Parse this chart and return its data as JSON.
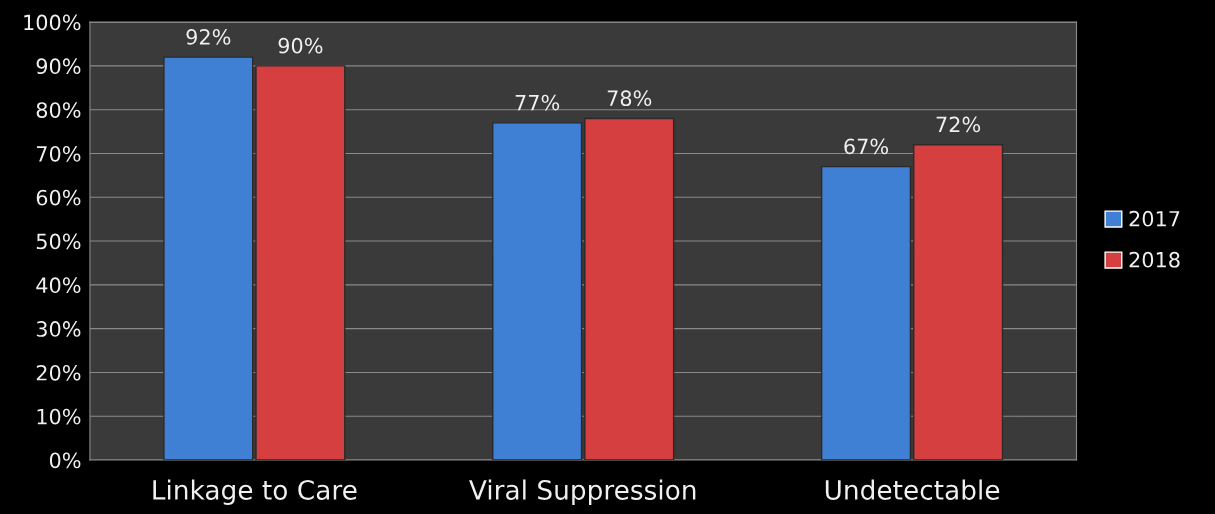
{
  "chart_data": {
    "type": "bar",
    "categories": [
      "Linkage to Care",
      "Viral Suppression",
      "Undetectable"
    ],
    "series": [
      {
        "name": "2017",
        "color": "#3f7fd4",
        "values": [
          92,
          77,
          67
        ],
        "value_labels": [
          "92%",
          "77%",
          "67%"
        ]
      },
      {
        "name": "2018",
        "color": "#d63f3f",
        "values": [
          90,
          78,
          72
        ],
        "value_labels": [
          "90%",
          "78%",
          "72%"
        ]
      }
    ],
    "ylim": [
      0,
      100
    ],
    "yticks": [
      {
        "value": 0,
        "label": "0%"
      },
      {
        "value": 10,
        "label": "10%"
      },
      {
        "value": 20,
        "label": "20%"
      },
      {
        "value": 30,
        "label": "30%"
      },
      {
        "value": 40,
        "label": "40%"
      },
      {
        "value": 50,
        "label": "50%"
      },
      {
        "value": 60,
        "label": "60%"
      },
      {
        "value": 70,
        "label": "70%"
      },
      {
        "value": 80,
        "label": "80%"
      },
      {
        "value": 90,
        "label": "90%"
      },
      {
        "value": 100,
        "label": "100%"
      }
    ],
    "grid": "y",
    "legend": "right"
  }
}
